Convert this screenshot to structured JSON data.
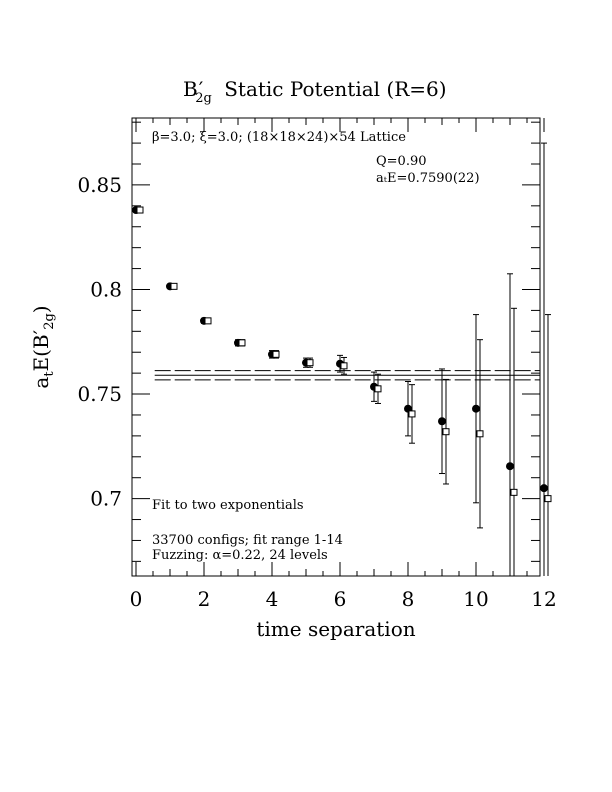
{
  "chart_data": {
    "type": "scatter",
    "title": "B′ Static Potential (R=6)",
    "title_sub": "2g",
    "xlabel": "time separation",
    "ylabel_main": "a",
    "ylabel_sub1": "t",
    "ylabel_mid": "E(B′",
    "ylabel_sub2": "2g",
    "ylabel_end": ")",
    "xlim": [
      0,
      12
    ],
    "ylim": [
      0.663,
      0.882
    ],
    "x_ticks": [
      0,
      2,
      4,
      6,
      8,
      10,
      12
    ],
    "y_ticks": [
      0.7,
      0.75,
      0.8,
      0.85
    ],
    "x_tick_labels": [
      "0",
      "2",
      "4",
      "6",
      "8",
      "10",
      "12"
    ],
    "y_tick_labels": [
      "0.7",
      "0.75",
      "0.8",
      "0.85"
    ],
    "annotations": {
      "lattice": "β=3.0; ξ=3.0; (18×18×24)×54 Lattice",
      "q": "Q=0.90",
      "energy": "aₜE=0.7590(22)",
      "fit": "Fit to two exponentials",
      "configs": "33700 configs; fit range 1-14",
      "fuzzing": "Fuzzing: α=0.22, 24 levels"
    },
    "fit": {
      "value": 0.759,
      "error": 0.0022
    },
    "series": [
      {
        "marker": "filled-circle",
        "points": [
          {
            "x": 0,
            "y": 0.838,
            "err": 0.0008
          },
          {
            "x": 1,
            "y": 0.8015,
            "err": 0.001
          },
          {
            "x": 2,
            "y": 0.785,
            "err": 0.0012
          },
          {
            "x": 3,
            "y": 0.7745,
            "err": 0.0015
          },
          {
            "x": 4,
            "y": 0.769,
            "err": 0.0018
          },
          {
            "x": 5,
            "y": 0.765,
            "err": 0.0022
          },
          {
            "x": 6,
            "y": 0.7645,
            "err": 0.004
          },
          {
            "x": 7,
            "y": 0.7535,
            "err": 0.007
          },
          {
            "x": 8,
            "y": 0.743,
            "err": 0.013
          },
          {
            "x": 9,
            "y": 0.737,
            "err": 0.025
          },
          {
            "x": 10,
            "y": 0.743,
            "err": 0.045
          },
          {
            "x": 11,
            "y": 0.7155,
            "err": 0.092
          },
          {
            "x": 12,
            "y": 0.705,
            "err": 0.165
          }
        ]
      },
      {
        "marker": "open-square",
        "points": [
          {
            "x": 0,
            "y": 0.838,
            "err": 0.0008
          },
          {
            "x": 1,
            "y": 0.8015,
            "err": 0.001
          },
          {
            "x": 2,
            "y": 0.785,
            "err": 0.0012
          },
          {
            "x": 3,
            "y": 0.7745,
            "err": 0.0015
          },
          {
            "x": 4,
            "y": 0.769,
            "err": 0.0018
          },
          {
            "x": 5,
            "y": 0.765,
            "err": 0.0022
          },
          {
            "x": 6,
            "y": 0.7635,
            "err": 0.004
          },
          {
            "x": 7,
            "y": 0.7525,
            "err": 0.007
          },
          {
            "x": 8,
            "y": 0.7405,
            "err": 0.014
          },
          {
            "x": 9,
            "y": 0.732,
            "err": 0.025
          },
          {
            "x": 10,
            "y": 0.731,
            "err": 0.045
          },
          {
            "x": 11,
            "y": 0.703,
            "err": 0.088
          },
          {
            "x": 12,
            "y": 0.7,
            "err": 0.088
          }
        ]
      }
    ]
  }
}
